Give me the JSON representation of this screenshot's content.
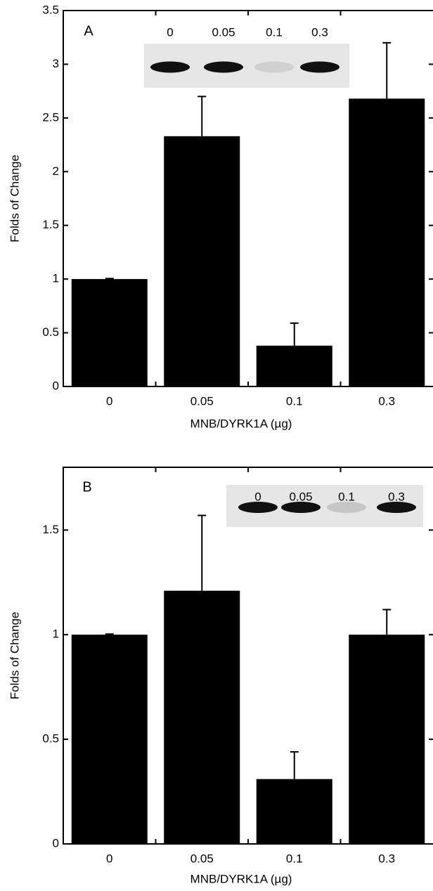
{
  "chart_data": [
    {
      "type": "bar",
      "panel_label": "A",
      "ylabel": "Folds of Change",
      "xlabel": "MNB/DYRK1A (µg)",
      "categories": [
        "0",
        "0.05",
        "0.1",
        "0.3"
      ],
      "values": [
        1.0,
        2.33,
        0.38,
        2.68
      ],
      "errors": [
        0.005,
        0.37,
        0.21,
        0.52
      ],
      "color": "#000000",
      "ylim": [
        0,
        3.5
      ],
      "yticks": [
        0,
        0.5,
        1,
        1.5,
        2,
        2.5,
        3,
        3.5
      ],
      "blot_labels": [
        "0",
        "0.05",
        "0.1",
        "0.3"
      ]
    },
    {
      "type": "bar",
      "panel_label": "B",
      "ylabel": "Folds of Change",
      "xlabel": "MNB/DYRK1A (µg)",
      "categories": [
        "0",
        "0.05",
        "0.1",
        "0.3"
      ],
      "values": [
        1.0,
        1.21,
        0.31,
        1.0
      ],
      "errors": [
        0.003,
        0.36,
        0.13,
        0.12
      ],
      "color": "#000000",
      "ylim": [
        0,
        1.8
      ],
      "yticks": [
        0,
        0.5,
        1,
        1.5
      ],
      "blot_labels": [
        "0",
        "0.05",
        "0.1",
        "0.3"
      ]
    }
  ]
}
